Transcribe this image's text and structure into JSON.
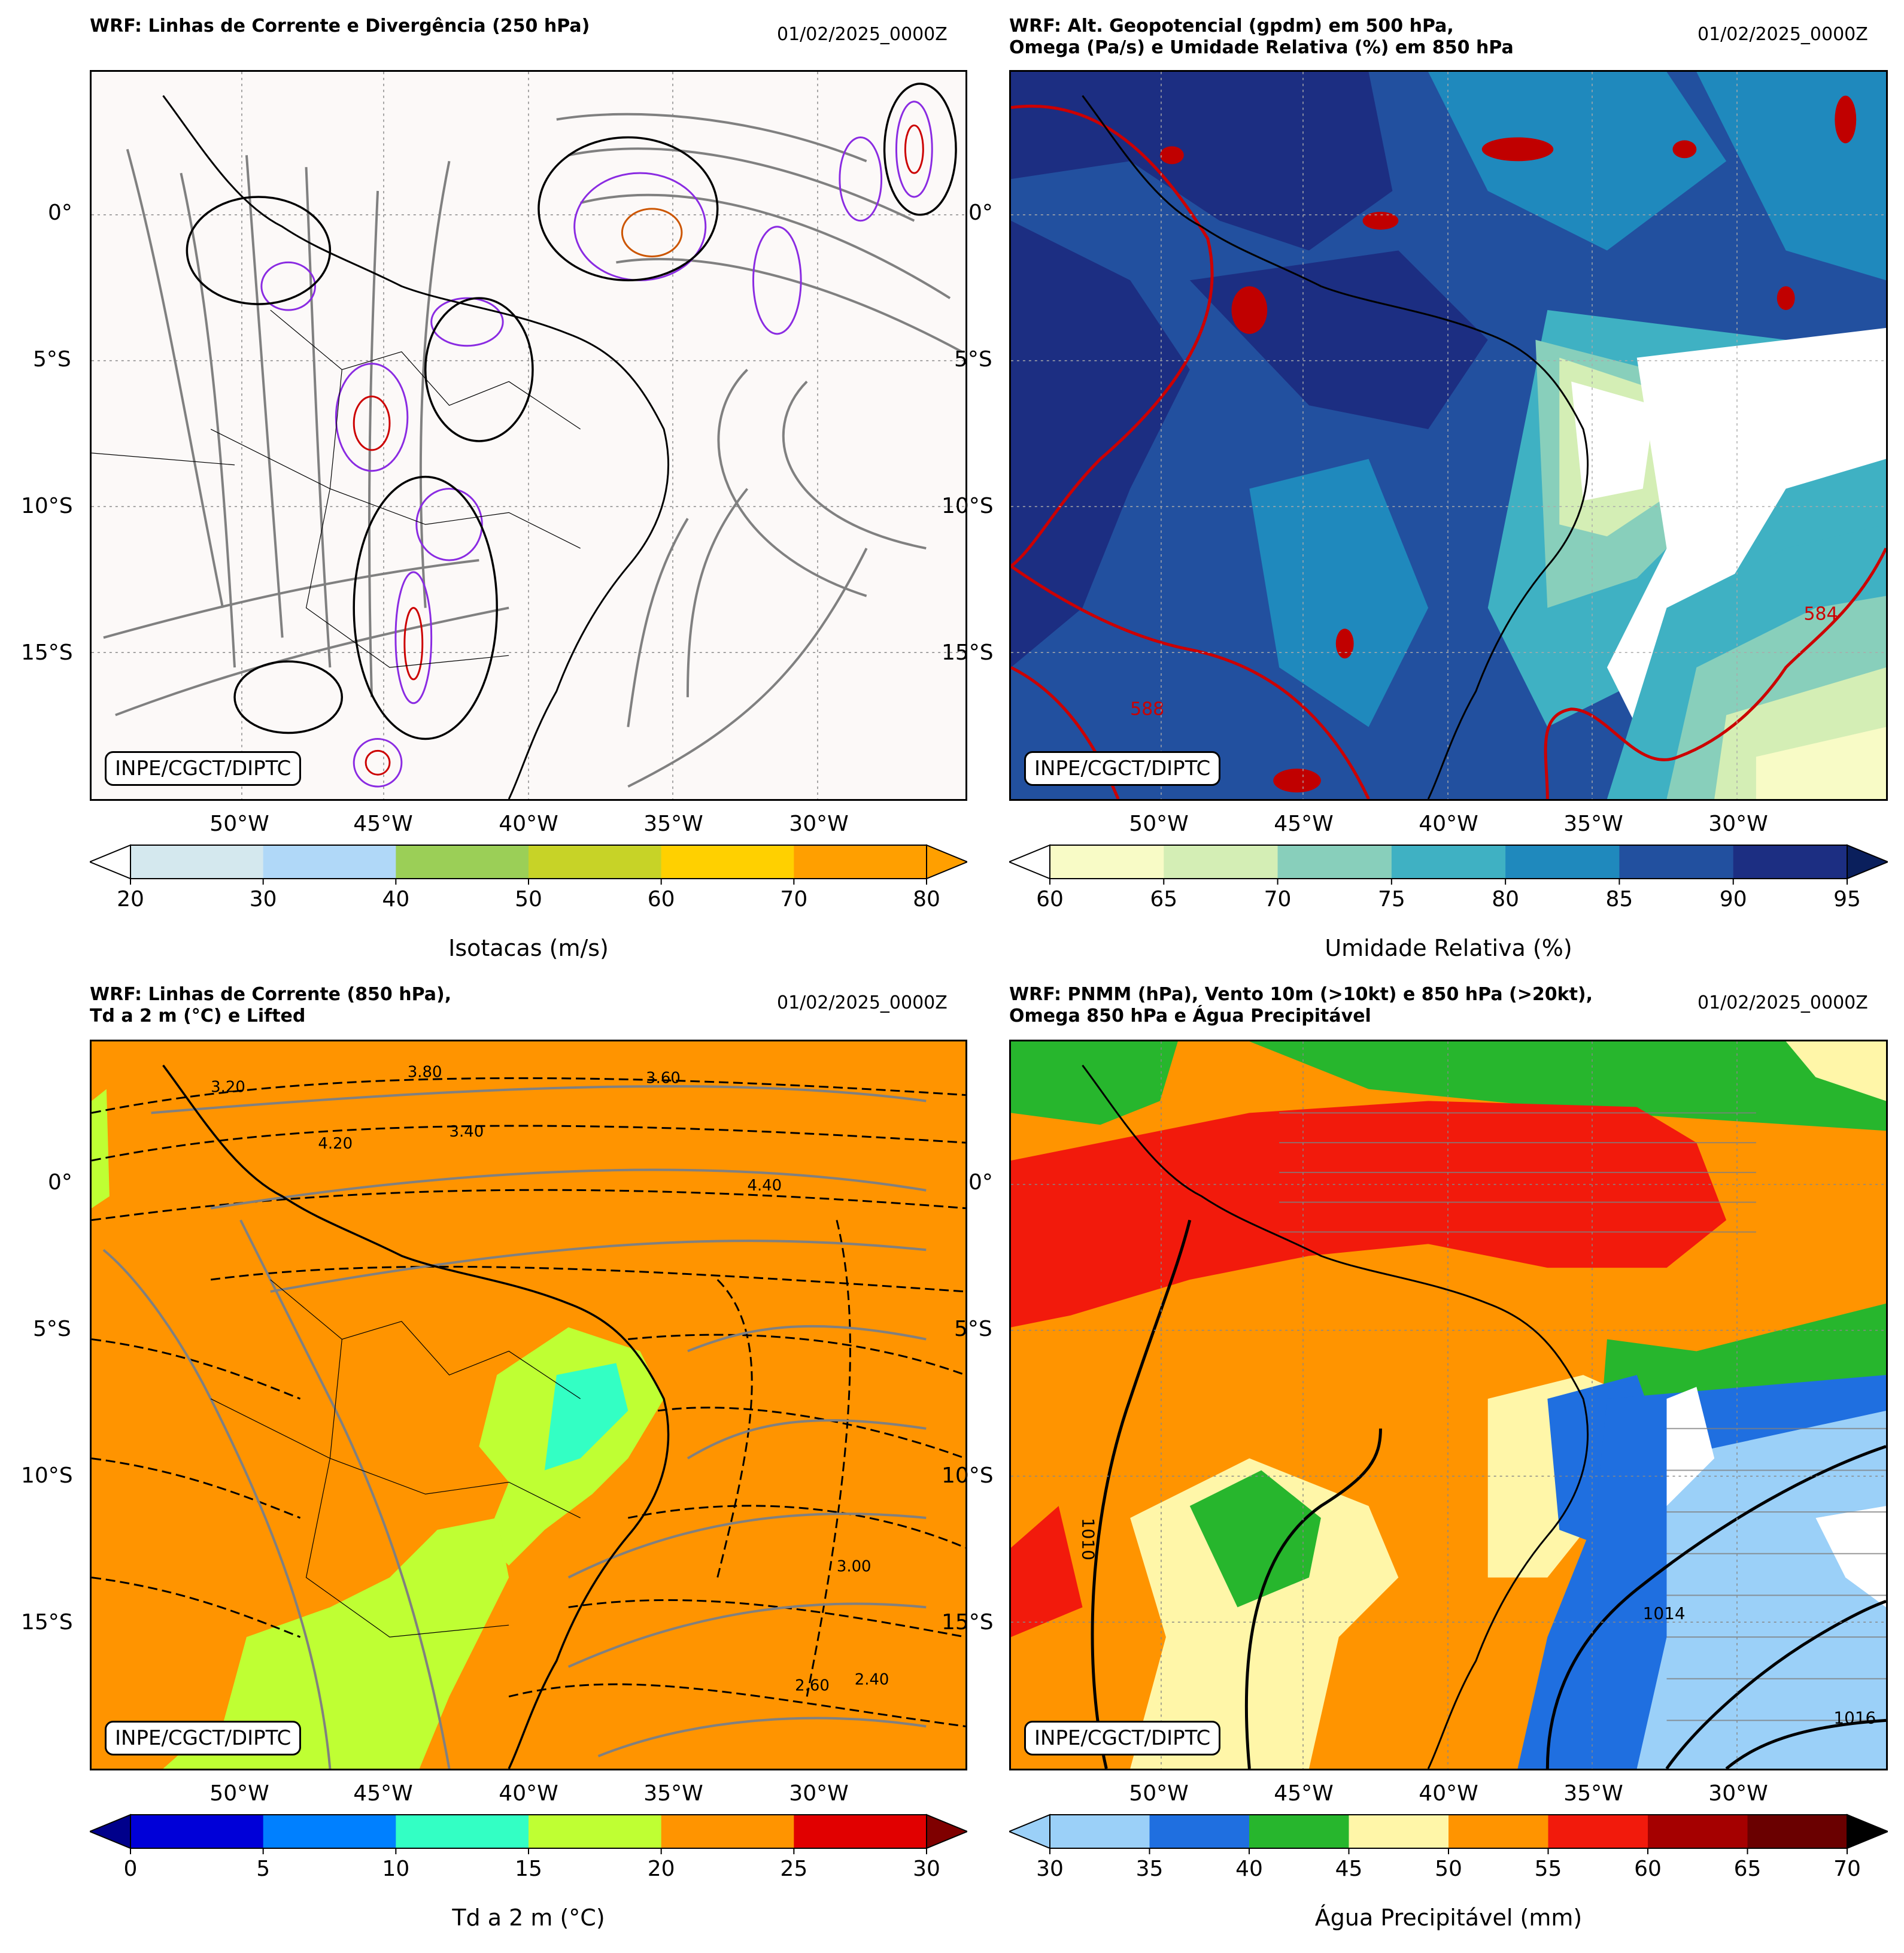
{
  "panels": [
    {
      "title_line1": "WRF: Linhas de Corrente e Divergência (250 hPa)",
      "title_line2": "",
      "date": "01/02/2025_0000Z",
      "credit": "INPE/CGCT/DIPTC",
      "colorbar": {
        "label": "Isotacas (m/s)",
        "ticks": [
          "20",
          "30",
          "40",
          "50",
          "60",
          "70",
          "80"
        ],
        "colors": [
          "#d4e8ee",
          "#b0d8f8",
          "#9bcf57",
          "#c7d327",
          "#ffd000",
          "#ff9f00"
        ],
        "extend_low": "#ffffff",
        "extend_high": "#ff9f00"
      }
    },
    {
      "title_line1": "WRF: Alt. Geopotencial (gpdm) em 500 hPa,",
      "title_line2": "Omega (Pa/s) e Umidade Relativa (%) em 850 hPa",
      "date": "01/02/2025_0000Z",
      "credit": "INPE/CGCT/DIPTC",
      "contour_labels": [
        "588",
        "584"
      ],
      "colorbar": {
        "label": "Umidade Relativa (%)",
        "ticks": [
          "60",
          "65",
          "70",
          "75",
          "80",
          "85",
          "90",
          "95"
        ],
        "colors": [
          "#f8fbc6",
          "#d4eeb5",
          "#88cfbb",
          "#3fb1c3",
          "#1f89bd",
          "#22509f",
          "#1c2e82"
        ],
        "extend_low": "#ffffff",
        "extend_high": "#0a1f5c"
      }
    },
    {
      "title_line1": "WRF: Linhas de Corrente (850 hPa),",
      "title_line2": "Td a 2 m (°C) e Lifted",
      "date": "01/02/2025_0000Z",
      "credit": "INPE/CGCT/DIPTC",
      "contour_labels": [
        "3.20",
        "3.80",
        "4.20",
        "3.40",
        "3.60",
        "4.40",
        "3.00",
        "2.60",
        "2.40"
      ],
      "colorbar": {
        "label": "Td a 2 m (°C)",
        "ticks": [
          "0",
          "5",
          "10",
          "15",
          "20",
          "25",
          "30"
        ],
        "colors": [
          "#0000d8",
          "#0080ff",
          "#33ffc4",
          "#bfff33",
          "#ff9400",
          "#e10000"
        ],
        "extend_low": "#00008b",
        "extend_high": "#7f0000"
      }
    },
    {
      "title_line1": "WRF: PNMM (hPa), Vento 10m (>10kt) e 850 hPa (>20kt),",
      "title_line2": "Omega 850 hPa e Água Precipitável",
      "date": "01/02/2025_0000Z",
      "credit": "INPE/CGCT/DIPTC",
      "contour_labels": [
        "1010",
        "1014",
        "1016"
      ],
      "colorbar": {
        "label": "Água Precipitável (mm)",
        "ticks": [
          "30",
          "35",
          "40",
          "45",
          "50",
          "55",
          "60",
          "65",
          "70"
        ],
        "colors": [
          "#9bd0f8",
          "#1f6fe0",
          "#27b62d",
          "#fff6a8",
          "#ff9400",
          "#f21a0c",
          "#a50000",
          "#6a0000"
        ],
        "extend_low": "#9bd0f8",
        "extend_high": "#000000"
      }
    }
  ],
  "axes": {
    "lat_labels": [
      "0°",
      "5°S",
      "10°S",
      "15°S"
    ],
    "lon_labels": [
      "50°W",
      "45°W",
      "40°W",
      "35°W",
      "30°W"
    ]
  },
  "colors": {
    "streamline": "#808080",
    "contour_red": "#cc0000",
    "coast": "#000000"
  }
}
